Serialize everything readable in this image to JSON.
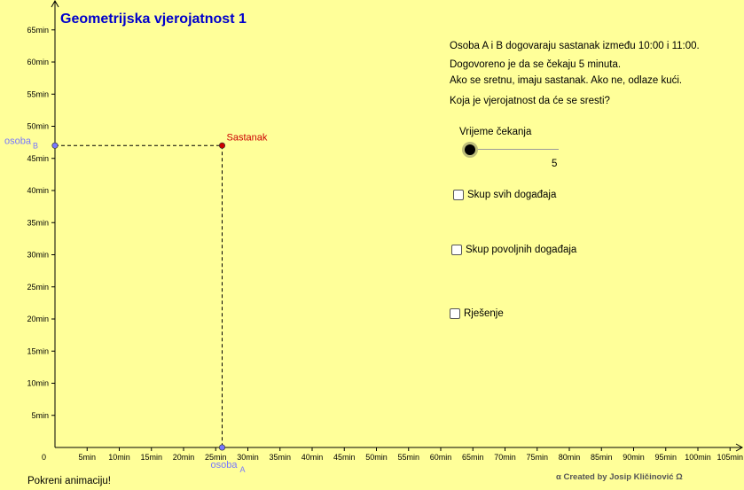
{
  "title": "Geometrijska vjerojatnost 1",
  "description": [
    "Osoba A i B dogovaraju sastanak između 10:00 i 11:00.",
    "Dogovoreno je da se čekaju 5 minuta.",
    "Ako se sretnu, imaju sastanak. Ako ne, odlaze kući.",
    "Koja je vjerojatnost da će se sresti?"
  ],
  "slider": {
    "label": "Vrijeme čekanja",
    "value": "5"
  },
  "checkboxes": [
    {
      "label": "Skup svih događaja",
      "checked": false
    },
    {
      "label": "Skup povoljnih događaja",
      "checked": false
    },
    {
      "label": "Rješenje",
      "checked": false
    }
  ],
  "axes": {
    "origin_label": "0",
    "x_ticks": [
      "5min",
      "10min",
      "15min",
      "20min",
      "25min",
      "30min",
      "35min",
      "40min",
      "45min",
      "50min",
      "55min",
      "60min",
      "65min",
      "70min",
      "75min",
      "80min",
      "85min",
      "90min",
      "95min",
      "100min",
      "105min"
    ],
    "y_ticks": [
      "5min",
      "10min",
      "15min",
      "20min",
      "25min",
      "30min",
      "35min",
      "40min",
      "45min",
      "50min",
      "55min",
      "60min",
      "65min"
    ],
    "x_point_label": "osoba",
    "x_point_sub": "A",
    "y_point_label": "osoba",
    "y_point_sub": "B"
  },
  "point": {
    "label": "Sastanak",
    "x_minutes": 26,
    "y_minutes": 47
  },
  "colors": {
    "point_color": "#cc0000",
    "axis_point_color": "#7777ff",
    "title_color": "#0000cc"
  },
  "animation_button": "Pokreni animaciju!",
  "credit": "α Created by Josip Kličinović Ω"
}
